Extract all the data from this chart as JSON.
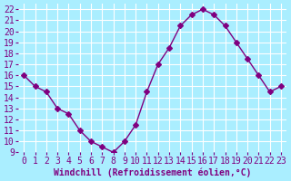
{
  "x": [
    0,
    1,
    2,
    3,
    4,
    5,
    6,
    7,
    8,
    9,
    10,
    11,
    12,
    13,
    14,
    15,
    16,
    17,
    18,
    19,
    20,
    21,
    22,
    23
  ],
  "y": [
    16,
    15,
    14.5,
    13,
    12.5,
    11,
    10,
    9.5,
    9,
    10,
    11.5,
    14.5,
    17,
    18.5,
    20.5,
    21.5,
    22,
    21.5,
    20.5,
    19,
    17.5,
    16,
    14.5,
    15
  ],
  "line_color": "#800080",
  "marker": "D",
  "marker_size": 3,
  "bg_color": "#aaeeff",
  "grid_color": "#ffffff",
  "xlabel": "Windchill (Refroidissement éolien,°C)",
  "xlabel_color": "#800080",
  "tick_label_color": "#800080",
  "ylim": [
    9,
    22.5
  ],
  "xlim": [
    -0.5,
    23.5
  ],
  "yticks": [
    9,
    10,
    11,
    12,
    13,
    14,
    15,
    16,
    17,
    18,
    19,
    20,
    21,
    22
  ],
  "xticks": [
    0,
    1,
    2,
    3,
    4,
    5,
    6,
    7,
    8,
    9,
    10,
    11,
    12,
    13,
    14,
    15,
    16,
    17,
    18,
    19,
    20,
    21,
    22,
    23
  ],
  "font_family": "monospace",
  "font_size": 7
}
